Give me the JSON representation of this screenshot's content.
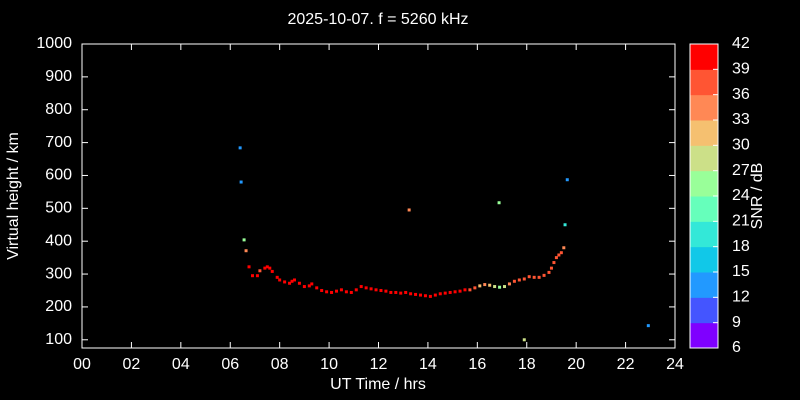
{
  "chart_data": {
    "type": "scatter",
    "title": "2025-10-07. f = 5260 kHz",
    "xlabel": "UT Time / hrs",
    "ylabel": "Virtual height / km",
    "colorbar_label": "SNR / dB",
    "xlim": [
      0,
      24
    ],
    "xticks": [
      {
        "value": 0,
        "label": "00"
      },
      {
        "value": 2,
        "label": "02"
      },
      {
        "value": 4,
        "label": "04"
      },
      {
        "value": 6,
        "label": "06"
      },
      {
        "value": 8,
        "label": "08"
      },
      10,
      12,
      14,
      16,
      18,
      20,
      22,
      24
    ],
    "ylim": [
      75,
      1000
    ],
    "yticks": [
      100,
      200,
      300,
      400,
      500,
      600,
      700,
      800,
      900,
      1000
    ],
    "clim": [
      6,
      42
    ],
    "cticks": [
      6,
      9,
      12,
      15,
      18,
      21,
      24,
      27,
      30,
      33,
      36,
      39,
      42
    ],
    "colors": [
      "#7f00ff",
      "#4455ff",
      "#2299ff",
      "#11c8e8",
      "#33e8d8",
      "#66ffbb",
      "#99ff99",
      "#cce088",
      "#f5c070",
      "#ff8855",
      "#ff5533",
      "#ff0000"
    ],
    "x": [
      6.4,
      6.44,
      6.56,
      6.64,
      6.76,
      13.24,
      16.88,
      19.64,
      19.55,
      17.9,
      22.92,
      6.9,
      7.1,
      7.2,
      7.4,
      7.5,
      7.6,
      7.7,
      7.9,
      8.0,
      8.2,
      8.4,
      8.5,
      8.6,
      8.8,
      9.0,
      9.2,
      9.3,
      9.5,
      9.7,
      9.9,
      10.1,
      10.3,
      10.5,
      10.7,
      10.9,
      11.1,
      11.3,
      11.5,
      11.7,
      11.9,
      12.1,
      12.3,
      12.5,
      12.7,
      12.9,
      13.1,
      13.3,
      13.5,
      13.7,
      13.9,
      14.1,
      14.3,
      14.5,
      14.7,
      14.9,
      15.1,
      15.3,
      15.5,
      15.7,
      15.9,
      16.1,
      16.3,
      16.5,
      16.7,
      16.9,
      17.1,
      17.3,
      17.5,
      17.7,
      17.9,
      18.1,
      18.3,
      18.5,
      18.7,
      18.9,
      19.0,
      19.1,
      19.2,
      19.3,
      19.4,
      19.5
    ],
    "values": [
      684,
      580,
      404,
      371,
      322,
      495,
      517,
      587,
      450,
      100,
      143,
      295,
      295,
      310,
      318,
      322,
      318,
      308,
      290,
      282,
      276,
      272,
      278,
      282,
      272,
      262,
      264,
      270,
      258,
      250,
      246,
      244,
      248,
      252,
      246,
      244,
      252,
      262,
      258,
      255,
      252,
      250,
      248,
      244,
      244,
      242,
      244,
      240,
      238,
      236,
      234,
      232,
      236,
      240,
      242,
      244,
      246,
      248,
      252,
      252,
      258,
      264,
      268,
      266,
      262,
      260,
      262,
      270,
      278,
      282,
      285,
      292,
      290,
      290,
      296,
      305,
      318,
      335,
      350,
      358,
      365,
      380
    ],
    "snr": [
      12,
      12,
      24,
      35,
      40,
      35,
      25,
      12,
      20,
      28,
      12,
      40,
      40,
      38,
      40,
      40,
      40,
      40,
      40,
      40,
      40,
      40,
      40,
      40,
      40,
      40,
      40,
      40,
      40,
      40,
      40,
      40,
      40,
      40,
      40,
      40,
      40,
      40,
      40,
      40,
      40,
      40,
      40,
      40,
      40,
      40,
      40,
      40,
      40,
      40,
      40,
      40,
      40,
      40,
      40,
      40,
      40,
      40,
      40,
      38,
      36,
      30,
      33,
      30,
      27,
      26,
      28,
      33,
      36,
      36,
      36,
      36,
      38,
      37,
      37,
      37,
      37,
      37,
      37,
      37,
      37,
      33
    ]
  }
}
